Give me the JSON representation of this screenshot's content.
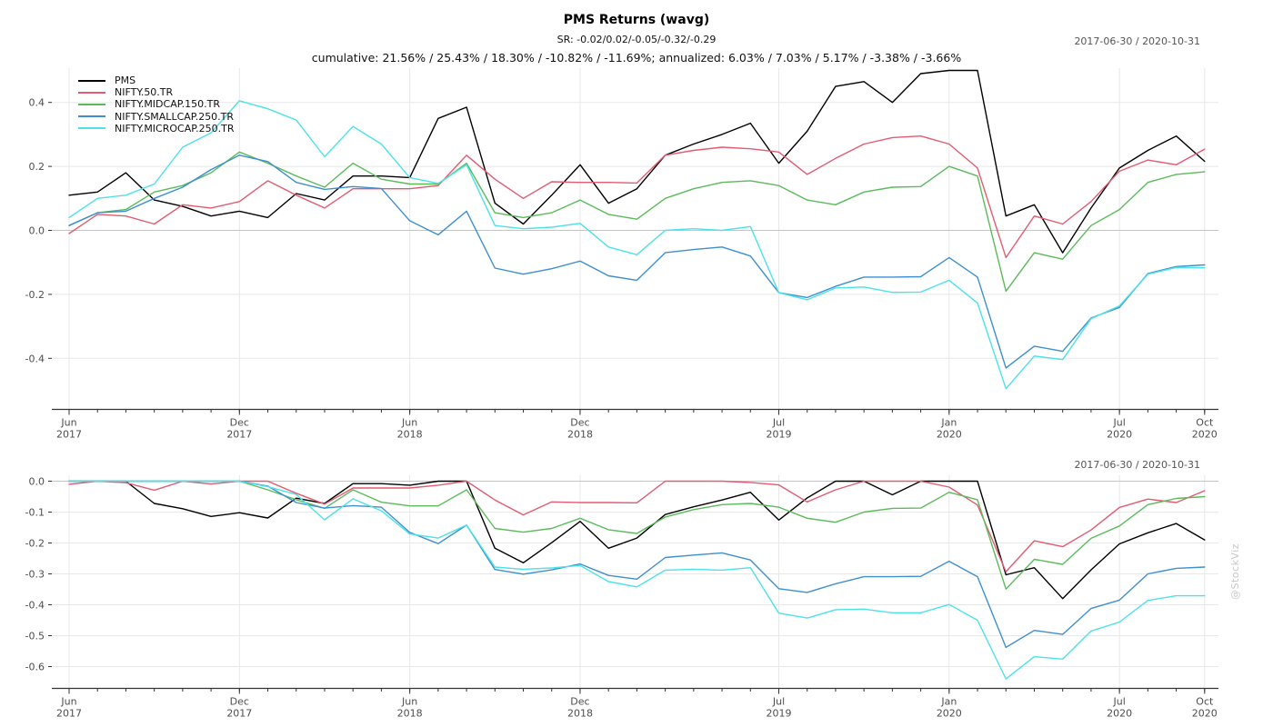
{
  "header": {
    "title": "PMS Returns (wavg)",
    "subtitle": "SR: -0.02/0.02/-0.05/-0.32/-0.29",
    "summary": "cumulative: 21.56% / 25.43% / 18.30% / -10.82% / -11.69%; annualized: 6.03% / 7.03% / 5.17% / -3.38% / -3.66%",
    "date_range_top": "2017-06-30 / 2020-10-31",
    "date_range_bottom": "2017-06-30 / 2020-10-31"
  },
  "watermark": "@StockViz",
  "colors": {
    "pms": "#000000",
    "nifty50": "#e25b70",
    "midcap": "#5bbb5b",
    "smallcap": "#3e8fd0",
    "microcap": "#4be2e8",
    "grid": "#e8e8e8",
    "grid_zero": "#c4c4c4",
    "axis": "#333333",
    "tick_label": "#4d4d4d"
  },
  "chart_data": [
    {
      "type": "line",
      "name": "cumulative-returns",
      "grid": true,
      "legend_position": "top-left",
      "x": [
        "2017-06",
        "2017-07",
        "2017-08",
        "2017-09",
        "2017-10",
        "2017-11",
        "2017-12",
        "2018-01",
        "2018-02",
        "2018-03",
        "2018-04",
        "2018-05",
        "2018-06",
        "2018-07",
        "2018-08",
        "2018-09",
        "2018-10",
        "2018-11",
        "2018-12",
        "2019-01",
        "2019-02",
        "2019-03",
        "2019-04",
        "2019-05",
        "2019-06",
        "2019-07",
        "2019-08",
        "2019-09",
        "2019-10",
        "2019-11",
        "2019-12",
        "2020-01",
        "2020-02",
        "2020-03",
        "2020-04",
        "2020-05",
        "2020-06",
        "2020-07",
        "2020-08",
        "2020-09",
        "2020-10"
      ],
      "x_tick_indices": [
        0,
        6,
        12,
        18,
        25,
        31,
        37,
        40
      ],
      "x_tick_labels": [
        [
          "Jun",
          "2017"
        ],
        [
          "Dec",
          "2017"
        ],
        [
          "Jun",
          "2018"
        ],
        [
          "Dec",
          "2018"
        ],
        [
          "Jul",
          "2019"
        ],
        [
          "Jan",
          "2020"
        ],
        [
          "Jul",
          "2020"
        ],
        [
          "Oct",
          "2020"
        ]
      ],
      "ylim": [
        -0.54,
        0.51
      ],
      "yticks": [
        0.4,
        0.2,
        0.0,
        -0.2,
        -0.4
      ],
      "ytick_labels": [
        "0.4",
        "0.2",
        "0.0",
        "-0.2",
        "-0.4"
      ],
      "series": [
        {
          "name": "PMS",
          "color_key": "pms",
          "values": [
            0.11,
            0.12,
            0.18,
            0.095,
            0.075,
            0.045,
            0.06,
            0.04,
            0.115,
            0.095,
            0.17,
            0.17,
            0.165,
            0.35,
            0.385,
            0.085,
            0.02,
            0.11,
            0.205,
            0.085,
            0.13,
            0.235,
            0.27,
            0.3,
            0.335,
            0.21,
            0.31,
            0.45,
            0.465,
            0.4,
            0.49,
            0.5,
            0.5,
            0.045,
            0.08,
            -0.07,
            0.07,
            0.195,
            0.25,
            0.295,
            0.216
          ]
        },
        {
          "name": "NIFTY.50.TR",
          "color_key": "nifty50",
          "values": [
            -0.01,
            0.05,
            0.045,
            0.02,
            0.08,
            0.07,
            0.09,
            0.155,
            0.11,
            0.07,
            0.13,
            0.13,
            0.13,
            0.14,
            0.235,
            0.16,
            0.1,
            0.152,
            0.15,
            0.15,
            0.148,
            0.235,
            0.25,
            0.26,
            0.255,
            0.245,
            0.175,
            0.225,
            0.27,
            0.29,
            0.295,
            0.27,
            0.195,
            -0.085,
            0.045,
            0.02,
            0.09,
            0.185,
            0.22,
            0.205,
            0.254
          ]
        },
        {
          "name": "NIFTY.MIDCAP.150.TR",
          "color_key": "midcap",
          "values": [
            0.015,
            0.055,
            0.065,
            0.12,
            0.14,
            0.18,
            0.245,
            0.21,
            0.17,
            0.135,
            0.21,
            0.16,
            0.145,
            0.145,
            0.21,
            0.055,
            0.04,
            0.055,
            0.095,
            0.05,
            0.035,
            0.1,
            0.13,
            0.15,
            0.155,
            0.14,
            0.095,
            0.08,
            0.12,
            0.135,
            0.137,
            0.2,
            0.17,
            -0.19,
            -0.07,
            -0.09,
            0.015,
            0.065,
            0.15,
            0.175,
            0.183
          ]
        },
        {
          "name": "NIFTY.SMALLCAP.250.TR",
          "color_key": "smallcap",
          "values": [
            0.015,
            0.055,
            0.06,
            0.1,
            0.135,
            0.19,
            0.235,
            0.215,
            0.15,
            0.128,
            0.137,
            0.131,
            0.03,
            -0.014,
            0.06,
            -0.118,
            -0.137,
            -0.12,
            -0.096,
            -0.142,
            -0.156,
            -0.07,
            -0.06,
            -0.052,
            -0.08,
            -0.195,
            -0.21,
            -0.175,
            -0.146,
            -0.146,
            -0.145,
            -0.085,
            -0.146,
            -0.43,
            -0.362,
            -0.378,
            -0.274,
            -0.241,
            -0.135,
            -0.113,
            -0.108
          ]
        },
        {
          "name": "NIFTY.MICROCAP.250.TR",
          "color_key": "microcap",
          "values": [
            0.04,
            0.1,
            0.11,
            0.145,
            0.26,
            0.305,
            0.405,
            0.38,
            0.345,
            0.23,
            0.325,
            0.27,
            0.165,
            0.147,
            0.205,
            0.015,
            0.005,
            0.01,
            0.022,
            -0.052,
            -0.076,
            0.0,
            0.005,
            0.0,
            0.012,
            -0.195,
            -0.217,
            -0.18,
            -0.177,
            -0.194,
            -0.193,
            -0.156,
            -0.227,
            -0.495,
            -0.393,
            -0.404,
            -0.276,
            -0.236,
            -0.137,
            -0.116,
            -0.117
          ]
        }
      ]
    },
    {
      "type": "line",
      "name": "drawdowns",
      "grid": true,
      "legend_position": "none",
      "x": [
        "2017-06",
        "2017-07",
        "2017-08",
        "2017-09",
        "2017-10",
        "2017-11",
        "2017-12",
        "2018-01",
        "2018-02",
        "2018-03",
        "2018-04",
        "2018-05",
        "2018-06",
        "2018-07",
        "2018-08",
        "2018-09",
        "2018-10",
        "2018-11",
        "2018-12",
        "2019-01",
        "2019-02",
        "2019-03",
        "2019-04",
        "2019-05",
        "2019-06",
        "2019-07",
        "2019-08",
        "2019-09",
        "2019-10",
        "2019-11",
        "2019-12",
        "2020-01",
        "2020-02",
        "2020-03",
        "2020-04",
        "2020-05",
        "2020-06",
        "2020-07",
        "2020-08",
        "2020-09",
        "2020-10"
      ],
      "x_tick_indices": [
        0,
        6,
        12,
        18,
        25,
        31,
        37,
        40
      ],
      "x_tick_labels": [
        [
          "Jun",
          "2017"
        ],
        [
          "Dec",
          "2017"
        ],
        [
          "Jun",
          "2018"
        ],
        [
          "Dec",
          "2018"
        ],
        [
          "Jul",
          "2019"
        ],
        [
          "Jan",
          "2020"
        ],
        [
          "Jul",
          "2020"
        ],
        [
          "Oct",
          "2020"
        ]
      ],
      "ylim": [
        -0.66,
        0.02
      ],
      "yticks": [
        0.0,
        -0.1,
        -0.2,
        -0.3,
        -0.4,
        -0.5,
        -0.6
      ],
      "ytick_labels": [
        "0.0",
        "-0.1",
        "-0.2",
        "-0.3",
        "-0.4",
        "-0.5",
        "-0.6"
      ],
      "series": [
        {
          "name": "PMS",
          "color_key": "pms",
          "values": [
            0,
            0,
            0,
            -0.072,
            -0.089,
            -0.114,
            -0.102,
            -0.119,
            -0.055,
            -0.072,
            -0.008,
            -0.008,
            -0.013,
            0,
            0,
            -0.217,
            -0.264,
            -0.199,
            -0.13,
            -0.217,
            -0.184,
            -0.108,
            -0.083,
            -0.061,
            -0.036,
            -0.126,
            -0.054,
            0,
            0,
            -0.044,
            0,
            0,
            0,
            -0.303,
            -0.28,
            -0.38,
            -0.287,
            -0.203,
            -0.167,
            -0.137,
            -0.19
          ]
        },
        {
          "name": "NIFTY.50.TR",
          "color_key": "nifty50",
          "values": [
            -0.01,
            0,
            -0.005,
            -0.029,
            0,
            -0.009,
            0,
            0,
            -0.039,
            -0.074,
            -0.022,
            -0.022,
            -0.022,
            -0.013,
            0,
            -0.061,
            -0.109,
            -0.067,
            -0.069,
            -0.069,
            -0.07,
            0,
            0,
            0,
            -0.004,
            -0.012,
            -0.067,
            -0.028,
            0,
            0,
            0,
            -0.019,
            -0.077,
            -0.293,
            -0.193,
            -0.212,
            -0.158,
            -0.085,
            -0.058,
            -0.069,
            -0.031
          ]
        },
        {
          "name": "NIFTY.MIDCAP.150.TR",
          "color_key": "midcap",
          "values": [
            0,
            0,
            0,
            0,
            0,
            0,
            0,
            -0.028,
            -0.06,
            -0.088,
            -0.028,
            -0.068,
            -0.08,
            -0.08,
            -0.028,
            -0.153,
            -0.165,
            -0.153,
            -0.12,
            -0.157,
            -0.169,
            -0.116,
            -0.092,
            -0.076,
            -0.072,
            -0.084,
            -0.12,
            -0.133,
            -0.1,
            -0.088,
            -0.087,
            -0.036,
            -0.06,
            -0.349,
            -0.253,
            -0.269,
            -0.185,
            -0.145,
            -0.076,
            -0.056,
            -0.05
          ]
        },
        {
          "name": "NIFTY.SMALLCAP.250.TR",
          "color_key": "smallcap",
          "values": [
            0,
            0,
            0,
            0,
            0,
            0,
            0,
            -0.016,
            -0.069,
            -0.087,
            -0.079,
            -0.084,
            -0.166,
            -0.202,
            -0.142,
            -0.286,
            -0.301,
            -0.287,
            -0.268,
            -0.305,
            -0.317,
            -0.247,
            -0.239,
            -0.232,
            -0.255,
            -0.348,
            -0.36,
            -0.332,
            -0.309,
            -0.309,
            -0.308,
            -0.259,
            -0.309,
            -0.538,
            -0.483,
            -0.496,
            -0.412,
            -0.385,
            -0.3,
            -0.282,
            -0.278
          ]
        },
        {
          "name": "NIFTY.MICROCAP.250.TR",
          "color_key": "microcap",
          "values": [
            0,
            0,
            0,
            0,
            0,
            0,
            0,
            -0.018,
            -0.043,
            -0.125,
            -0.057,
            -0.096,
            -0.171,
            -0.184,
            -0.142,
            -0.278,
            -0.285,
            -0.281,
            -0.273,
            -0.325,
            -0.342,
            -0.288,
            -0.285,
            -0.288,
            -0.28,
            -0.427,
            -0.443,
            -0.416,
            -0.414,
            -0.426,
            -0.426,
            -0.399,
            -0.45,
            -0.64,
            -0.568,
            -0.576,
            -0.485,
            -0.456,
            -0.386,
            -0.371,
            -0.371
          ]
        }
      ]
    }
  ]
}
